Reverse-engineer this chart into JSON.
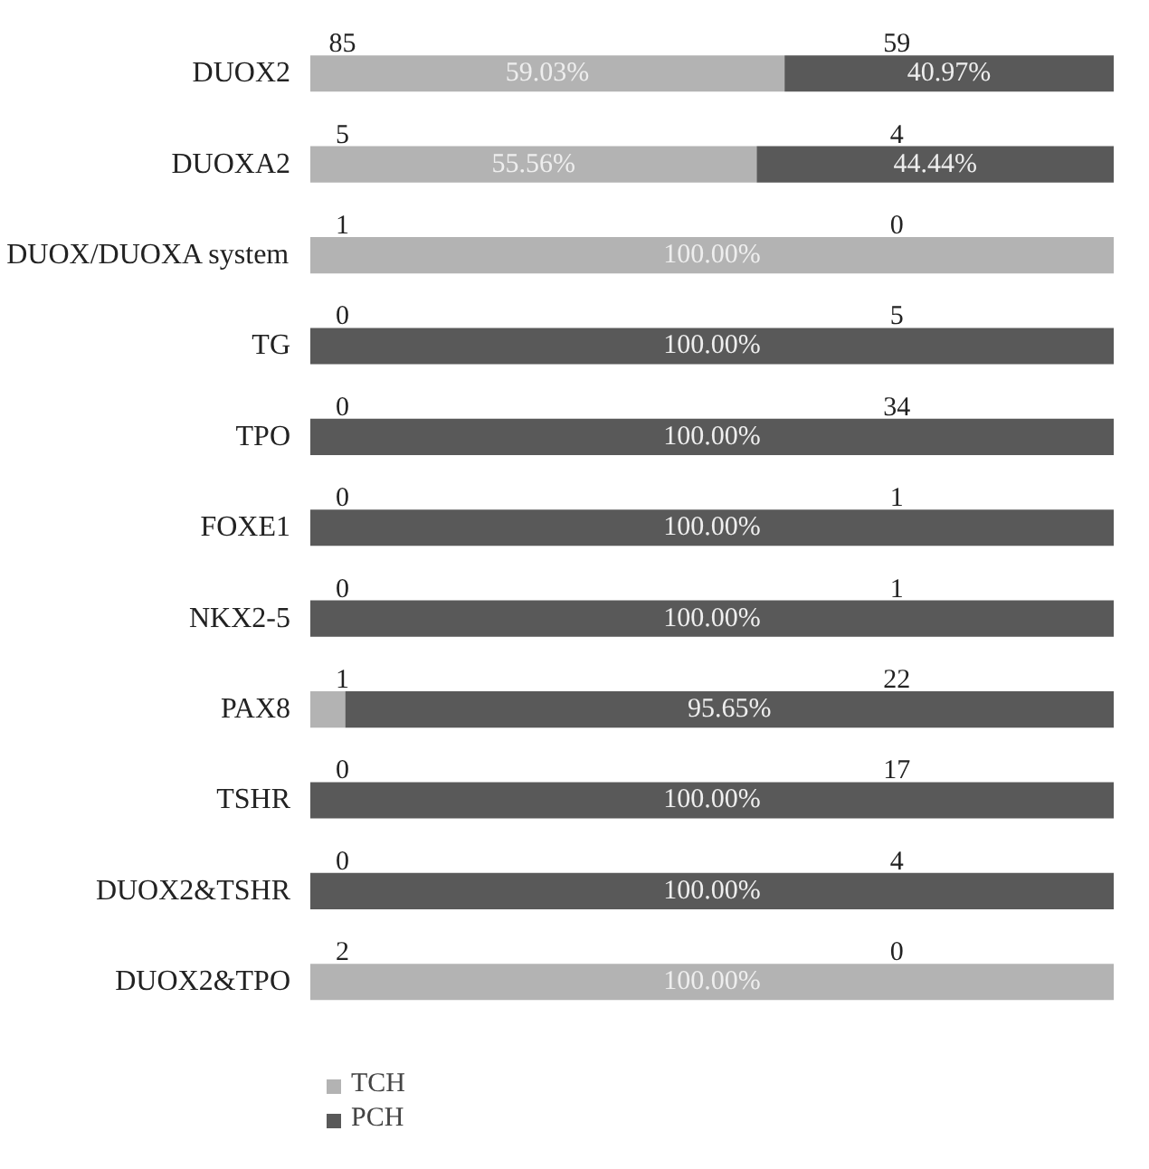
{
  "chart_data": {
    "type": "bar",
    "orientation": "horizontal",
    "stacked": true,
    "categories": [
      "DUOX2",
      "DUOXA2",
      "DUOX/DUOXA system",
      "TG",
      "TPO",
      "FOXE1",
      "NKX2-5",
      "PAX8",
      "TSHR",
      "DUOX2&TSHR",
      "DUOX2&TPO"
    ],
    "xlim": [
      0,
      100
    ],
    "tick_labels": "y",
    "grid": false,
    "legend": "bottom",
    "series": [
      {
        "name": "TCH",
        "color": "#b3b3b3",
        "values": [
          59.03,
          55.56,
          100,
          0,
          0,
          0,
          0,
          4.35,
          0,
          0,
          100
        ],
        "value_labels": [
          "59.03%",
          "55.56%",
          "100.00%",
          null,
          null,
          null,
          null,
          null,
          null,
          null,
          "100.00%"
        ]
      },
      {
        "name": "PCH",
        "color": "#595959",
        "values": [
          40.97,
          44.44,
          0,
          100,
          100,
          100,
          100,
          95.65,
          100,
          100,
          0
        ],
        "value_labels": [
          "40.97%",
          "44.44%",
          null,
          "100.00%",
          "100.00%",
          "100.00%",
          "100.00%",
          "95.65%",
          "100.00%",
          "100.00%",
          null
        ]
      }
    ],
    "annotations": [
      "85",
      "59",
      "5",
      "4",
      "1",
      "0",
      "0",
      "5",
      "0",
      "34",
      "0",
      "1",
      "0",
      "1",
      "1",
      "22",
      "0",
      "17",
      "0",
      "4",
      "2",
      "0"
    ]
  }
}
